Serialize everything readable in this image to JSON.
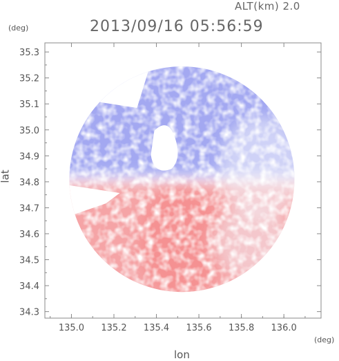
{
  "header": {
    "altitude_label": "ALT(km) 2.0",
    "timestamp": "2013/09/16 05:56:59"
  },
  "chart_data": {
    "type": "heatmap",
    "title": "2013/09/16 05:56:59",
    "xlabel": "lon",
    "ylabel": "lat",
    "x_unit": "(deg)",
    "y_unit": "(deg)",
    "xlim": [
      134.875,
      136.175
    ],
    "ylim": [
      34.275,
      35.335
    ],
    "x_ticks": [
      "135.0",
      "135.2",
      "135.4",
      "135.6",
      "135.8",
      "136.0"
    ],
    "y_ticks": [
      "34.3",
      "34.4",
      "34.5",
      "34.6",
      "34.7",
      "34.8",
      "34.9",
      "35.0",
      "35.1",
      "35.2",
      "35.3"
    ],
    "x_tick_values": [
      135.0,
      135.2,
      135.4,
      135.6,
      135.8,
      136.0
    ],
    "y_tick_values": [
      34.3,
      34.4,
      34.5,
      34.6,
      34.7,
      34.8,
      34.9,
      35.0,
      35.1,
      35.2,
      35.3
    ],
    "radar_center": {
      "lon": 135.52,
      "lat": 34.81
    },
    "coverage_radius_deg": 0.53,
    "grid": false,
    "colors": {
      "approaching": "#8c93ee",
      "receding": "#f58585",
      "near_zero": "#f4f4fb",
      "axis": "#888888"
    }
  }
}
